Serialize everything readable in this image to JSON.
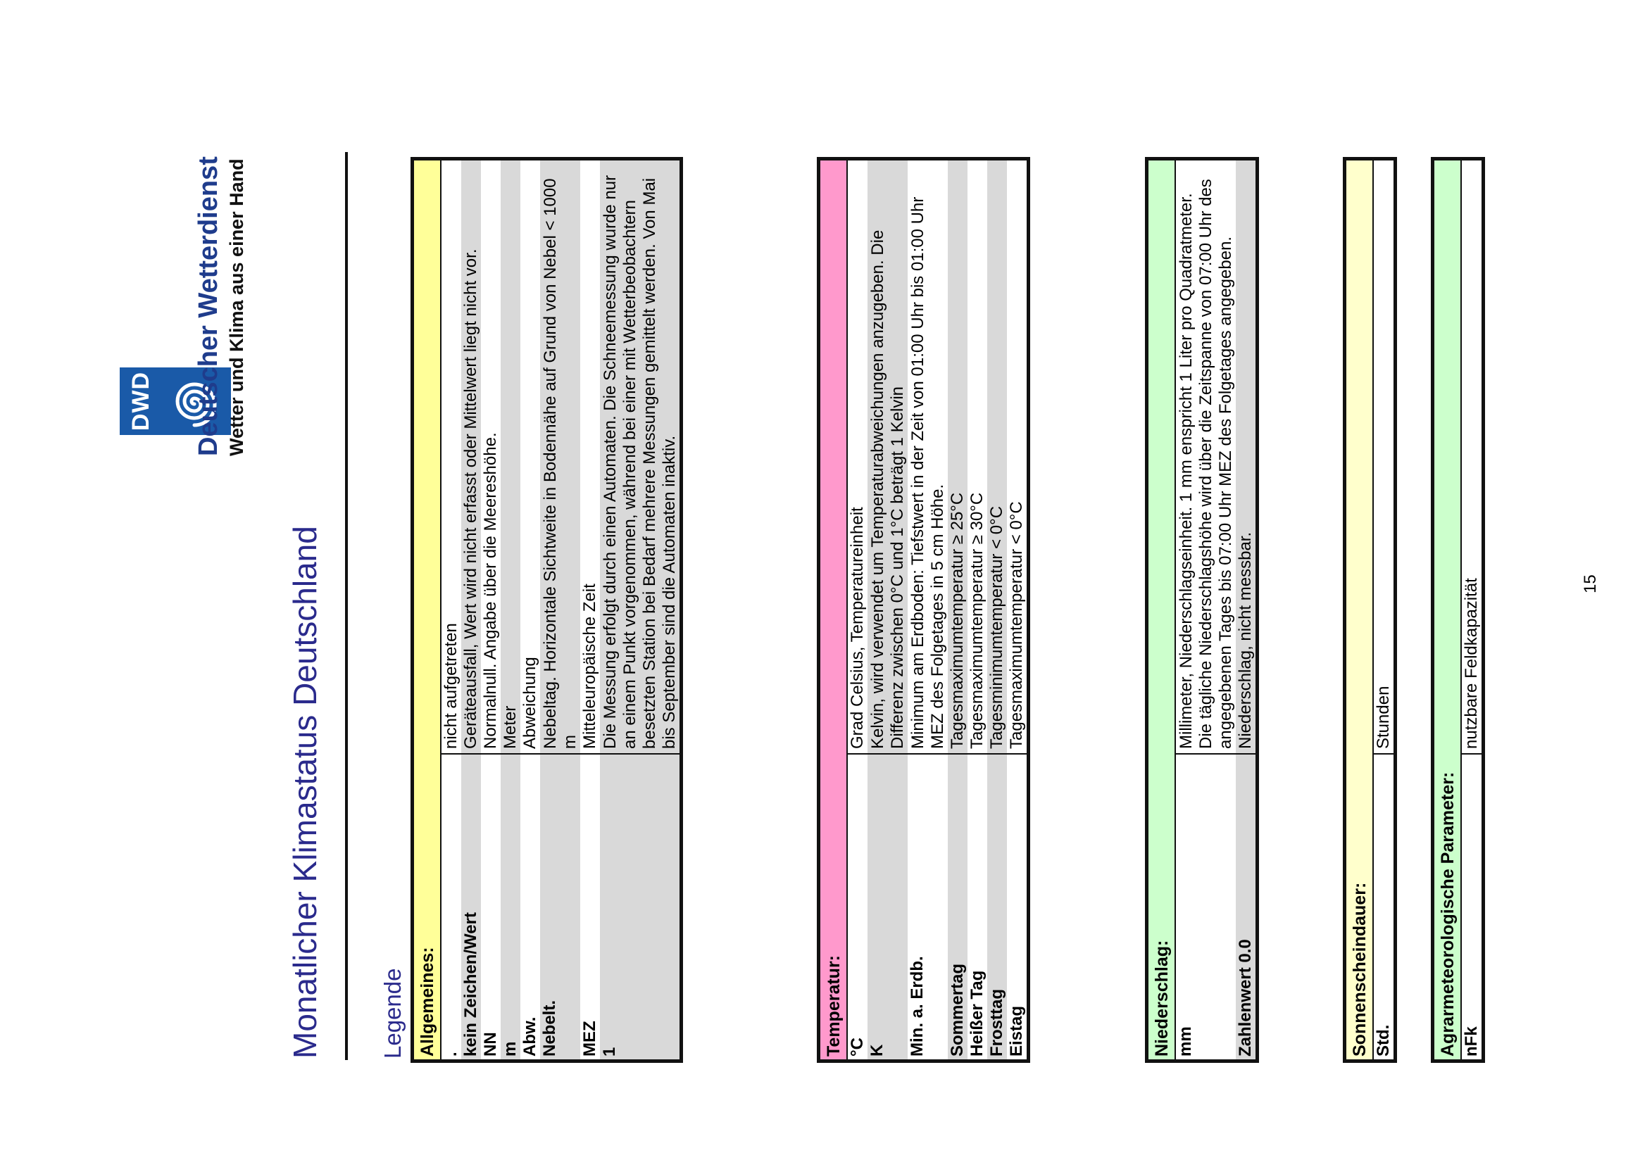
{
  "header": {
    "logo_abbr": "DWD",
    "org_name": "Deutscher Wetterdienst",
    "tagline": "Wetter und Klima aus einer Hand",
    "title": "Monatlicher Klimastatus Deutschland",
    "legend_heading": "Legende",
    "page_number": "15",
    "colors": {
      "brand_blue": "#1a5aa8",
      "title_blue": "#2a2a8c"
    }
  },
  "sections": [
    {
      "heading": "Allgemeines:",
      "color": "#ffff99",
      "rows": [
        {
          "key": ".",
          "value": "nicht aufgetreten",
          "shade": false
        },
        {
          "key": "kein Zeichen/Wert",
          "value": "Geräteausfall, Wert wird nicht erfasst oder Mittelwert liegt nicht vor.",
          "shade": true
        },
        {
          "key": "NN",
          "value": "Normalnull. Angabe über die Meereshöhe.",
          "shade": false
        },
        {
          "key": "m",
          "value": "Meter",
          "shade": true
        },
        {
          "key": "Abw.",
          "value": "Abweichung",
          "shade": false
        },
        {
          "key": "Nebelt.",
          "value": "Nebeltag. Horizontale Sichtweite in Bodennähe auf Grund von Nebel < 1000 m",
          "shade": true
        },
        {
          "key": "MEZ",
          "value": "Mitteleuropäische Zeit",
          "shade": false
        },
        {
          "key": "1",
          "value": "Die Messung erfolgt durch einen Automaten. Die Schneemessung wurde nur an einem Punkt vorgenommen, während bei einer mit Wetterbeobachtern besetzten Station bei Bedarf mehrere Messungen gemittelt werden. Von Mai bis September sind die Automaten inaktiv.",
          "shade": true
        }
      ]
    },
    {
      "heading": "Temperatur:",
      "color": "#ff99cc",
      "rows": [
        {
          "key": "°C",
          "value": "Grad Celsius, Temperatureinheit",
          "shade": false
        },
        {
          "key": "K",
          "value": "Kelvin, wird verwendet um Temperaturabweichungen anzugeben. Die Differenz zwischen 0°C und 1°C beträgt 1 Kelvin",
          "shade": true
        },
        {
          "key": "Min. a. Erdb.",
          "value": "Minimum am Erdboden: Tiefstwert in der Zeit von 01:00 Uhr bis 01:00 Uhr MEZ des Folgetages in 5 cm Höhe.",
          "shade": false
        },
        {
          "key": "Sommertag",
          "value": "Tagesmaximumtemperatur ≥ 25°C",
          "shade": true
        },
        {
          "key": "Heißer Tag",
          "value": "Tagesmaximumtemperatur ≥ 30°C",
          "shade": false
        },
        {
          "key": "Frosttag",
          "value": "Tagesminimumtemperatur < 0°C",
          "shade": true
        },
        {
          "key": "Eistag",
          "value": "Tagesmaximumtemperatur < 0°C",
          "shade": false
        }
      ]
    },
    {
      "heading": "Niederschlag:",
      "color": "#ccffcc",
      "rows": [
        {
          "key": "mm",
          "value": "Millimeter, Niederschlagseinheit. 1 mm enspricht 1 Liter pro Quadratmeter. Die tägliche Niederschlagshöhe wird über die Zeitspanne von 07:00 Uhr des angegebenen Tages bis 07:00 Uhr MEZ des Folgetages angegeben.",
          "shade": false
        },
        {
          "key": "Zahlenwert 0.0",
          "value": "Niederschlag, nicht messbar.",
          "shade": true
        }
      ]
    },
    {
      "heading": "Sonnenscheindauer:",
      "color": "#ffffcc",
      "rows": [
        {
          "key": "Std.",
          "value": "Stunden",
          "shade": false
        }
      ]
    },
    {
      "heading": "Agrarmeteorologische Parameter:",
      "color": "#ccffcc",
      "rows": [
        {
          "key": "nFk",
          "value": "nutzbare Feldkapazität",
          "shade": false
        }
      ]
    }
  ]
}
